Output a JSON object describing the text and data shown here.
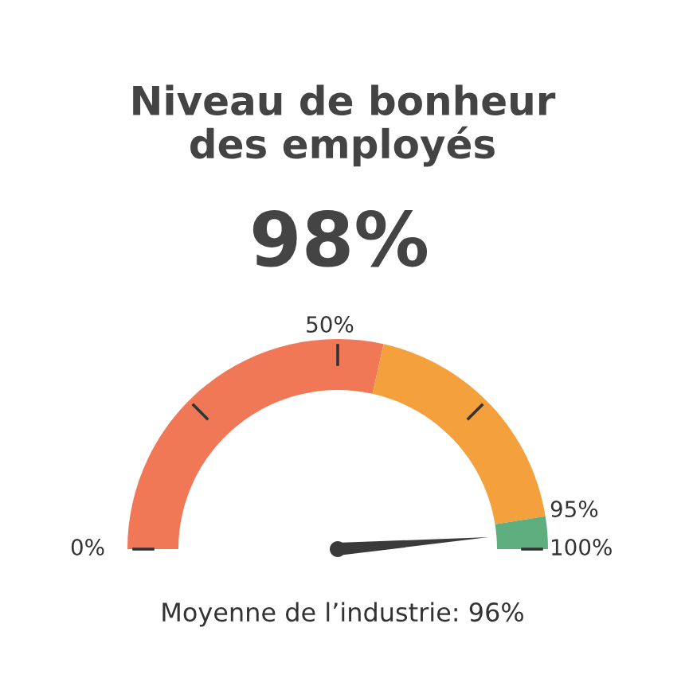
{
  "chart_data": {
    "type": "donut",
    "title": "Niveau de bonheur\ndes employés",
    "subtitle": "98%",
    "categories": [
      null,
      null,
      null
    ],
    "values": [
      57,
      38,
      5
    ],
    "colors": [
      "#f07857",
      "#f4a03d",
      "#5fae7f"
    ],
    "annotations": [
      "0%",
      "50%",
      "95%",
      "100%",
      "Moyenne de l’industrie: 96%"
    ]
  }
}
